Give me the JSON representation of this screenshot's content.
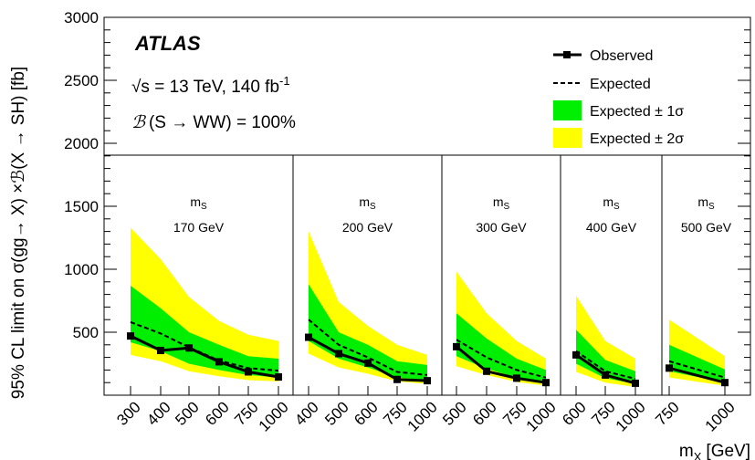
{
  "header": {
    "experiment": "ATLAS",
    "energy_line": "√s = 13 TeV, 140 fb",
    "energy_sup": "-1",
    "br_line": "(S → WW) = 100%",
    "br_symbol": "ℬ"
  },
  "colors": {
    "band_1sigma": "#00ee00",
    "band_2sigma": "#ffff00",
    "observed": "#000000",
    "expected": "#000000"
  },
  "chart_data": {
    "type": "line",
    "ylabel": "95% CL limit on σ(gg→ X) ×ℬ(X → SH) [fb]",
    "xlabel": "m",
    "xlabel_sub": "X",
    "xlabel_unit": "[GeV]",
    "ylim": [
      0,
      3000
    ],
    "yticks": [
      500,
      1000,
      1500,
      2000,
      2500,
      3000
    ],
    "legend": {
      "placement": "top-right",
      "entries": [
        "Observed",
        "Expected",
        "Expected ± 1σ",
        "Expected ± 2σ"
      ]
    },
    "panels": [
      {
        "ms_label": "m",
        "ms_sub": "S",
        "ms_value": "170 GeV",
        "x_labels": [
          "300",
          "400",
          "500",
          "600",
          "750",
          "1000"
        ],
        "observed": [
          470,
          355,
          375,
          265,
          185,
          145
        ],
        "expected": [
          580,
          490,
          380,
          275,
          215,
          195
        ],
        "band1_low": [
          420,
          350,
          250,
          200,
          160,
          140
        ],
        "band1_high": [
          870,
          690,
          500,
          400,
          310,
          290
        ],
        "band2_low": [
          320,
          270,
          190,
          150,
          120,
          110
        ],
        "band2_high": [
          1330,
          1080,
          780,
          590,
          480,
          430
        ]
      },
      {
        "ms_label": "m",
        "ms_sub": "S",
        "ms_value": "200 GeV",
        "x_labels": [
          "400",
          "500",
          "600",
          "750",
          "1000"
        ],
        "observed": [
          460,
          330,
          255,
          125,
          115
        ],
        "expected": [
          600,
          400,
          300,
          185,
          160
        ],
        "band1_low": [
          430,
          290,
          220,
          140,
          120
        ],
        "band1_high": [
          880,
          500,
          400,
          270,
          240
        ],
        "band2_low": [
          330,
          220,
          170,
          110,
          90
        ],
        "band2_high": [
          1300,
          740,
          550,
          400,
          320
        ]
      },
      {
        "ms_label": "m",
        "ms_sub": "S",
        "ms_value": "300 GeV",
        "x_labels": [
          "500",
          "600",
          "750",
          "1000"
        ],
        "observed": [
          385,
          190,
          135,
          100
        ],
        "expected": [
          440,
          300,
          200,
          140
        ],
        "band1_low": [
          310,
          210,
          140,
          100
        ],
        "band1_high": [
          650,
          450,
          290,
          200
        ],
        "band2_low": [
          230,
          160,
          105,
          75
        ],
        "band2_high": [
          980,
          650,
          430,
          290
        ]
      },
      {
        "ms_label": "m",
        "ms_sub": "S",
        "ms_value": "400 GeV",
        "x_labels": [
          "600",
          "750",
          "1000"
        ],
        "observed": [
          320,
          160,
          95
        ],
        "expected": [
          350,
          190,
          130
        ],
        "band1_low": [
          250,
          135,
          90
        ],
        "band1_high": [
          520,
          280,
          190
        ],
        "band2_low": [
          185,
          100,
          65
        ],
        "band2_high": [
          790,
          430,
          290
        ]
      },
      {
        "ms_label": "m",
        "ms_sub": "S",
        "ms_value": "500 GeV",
        "x_labels": [
          "750",
          "1000"
        ],
        "observed": [
          215,
          100
        ],
        "expected": [
          270,
          140
        ],
        "band1_low": [
          190,
          100
        ],
        "band1_high": [
          400,
          205
        ],
        "band2_low": [
          140,
          75
        ],
        "band2_high": [
          600,
          310
        ]
      }
    ]
  }
}
